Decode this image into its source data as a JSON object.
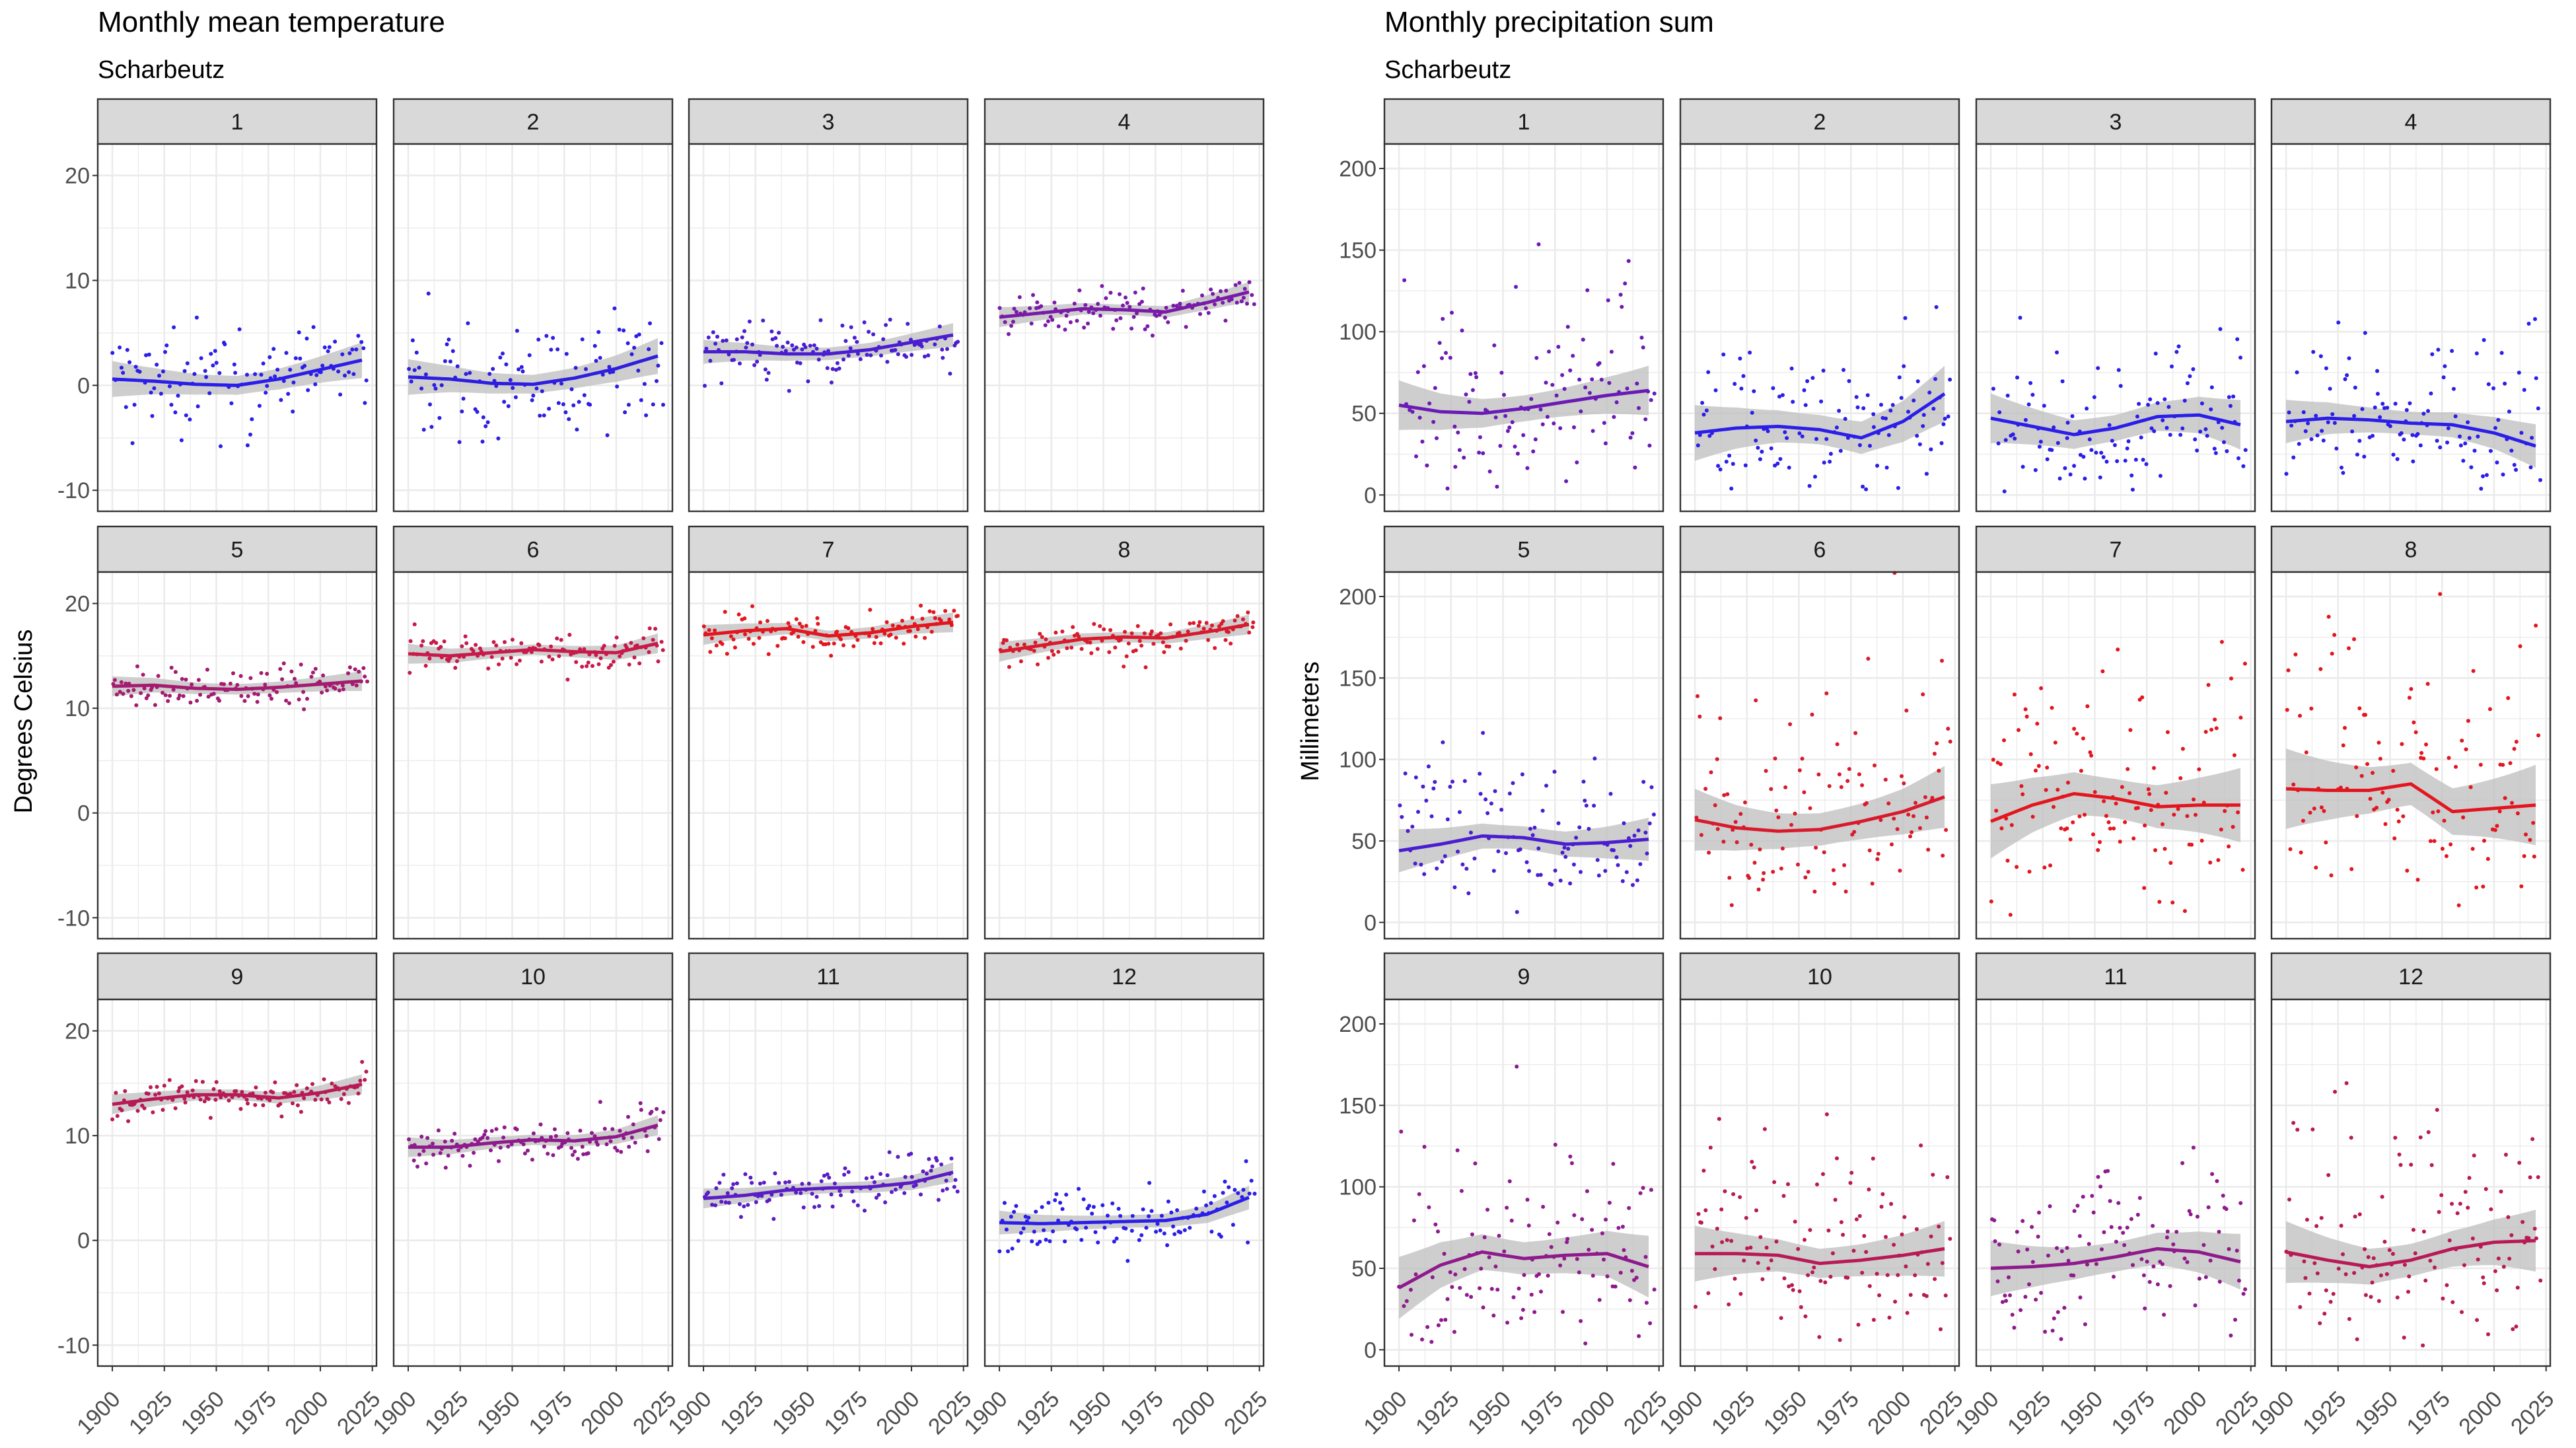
{
  "chart_data": [
    {
      "type": "scatter",
      "title": "Monthly mean temperature",
      "subtitle": "Scharbeutz",
      "ylabel": "Degrees Celsius",
      "xlabel": "",
      "xlim": [
        1893,
        2027
      ],
      "ylim": [
        -12,
        23
      ],
      "xticks": [
        1900,
        1925,
        1950,
        1975,
        2000,
        2025
      ],
      "yticks": [
        -10,
        0,
        10,
        20
      ],
      "facet_labels": [
        "1",
        "2",
        "3",
        "4",
        "5",
        "6",
        "7",
        "8",
        "9",
        "10",
        "11",
        "12"
      ],
      "smooth_x": [
        1900,
        1920,
        1940,
        1960,
        1980,
        2000,
        2020
      ],
      "series": [
        {
          "facet": "1",
          "color": "#2b1ee8",
          "smooth": [
            0.6,
            0.4,
            0.1,
            0.0,
            0.6,
            1.5,
            2.4
          ],
          "band": 0.9,
          "spread": 2.9
        },
        {
          "facet": "2",
          "color": "#2d1ee0",
          "smooth": [
            0.8,
            0.6,
            0.2,
            0.1,
            0.7,
            1.6,
            2.8
          ],
          "band": 0.9,
          "spread": 3.0
        },
        {
          "facet": "3",
          "color": "#4a1ed0",
          "smooth": [
            3.2,
            3.2,
            3.0,
            3.0,
            3.4,
            4.1,
            4.8
          ],
          "band": 0.6,
          "spread": 1.5
        },
        {
          "facet": "4",
          "color": "#7a1aa8",
          "smooth": [
            6.5,
            6.9,
            7.3,
            7.2,
            7.0,
            7.9,
            8.9
          ],
          "band": 0.5,
          "spread": 1.1
        },
        {
          "facet": "5",
          "color": "#a41b70",
          "smooth": [
            12.1,
            12.2,
            11.9,
            11.8,
            12.0,
            12.3,
            12.6
          ],
          "band": 0.5,
          "spread": 1.0
        },
        {
          "facet": "6",
          "color": "#c81a4a",
          "smooth": [
            15.2,
            15.0,
            15.3,
            15.6,
            15.4,
            15.3,
            16.2
          ],
          "band": 0.5,
          "spread": 1.0
        },
        {
          "facet": "7",
          "color": "#e3161f",
          "smooth": [
            17.0,
            17.4,
            17.6,
            16.9,
            17.2,
            17.8,
            18.2
          ],
          "band": 0.5,
          "spread": 1.1
        },
        {
          "facet": "8",
          "color": "#d81b2c",
          "smooth": [
            15.4,
            16.0,
            16.6,
            16.8,
            16.7,
            17.3,
            18.0
          ],
          "band": 0.5,
          "spread": 1.0
        },
        {
          "facet": "9",
          "color": "#b81a55",
          "smooth": [
            13.0,
            13.5,
            13.9,
            13.9,
            13.6,
            14.1,
            14.9
          ],
          "band": 0.5,
          "spread": 0.9
        },
        {
          "facet": "10",
          "color": "#8e1a8c",
          "smooth": [
            8.9,
            8.9,
            9.3,
            9.6,
            9.5,
            9.9,
            11.0
          ],
          "band": 0.5,
          "spread": 1.1
        },
        {
          "facet": "11",
          "color": "#5a1cc4",
          "smooth": [
            4.0,
            4.3,
            4.8,
            5.0,
            5.1,
            5.5,
            6.5
          ],
          "band": 0.5,
          "spread": 1.2
        },
        {
          "facet": "12",
          "color": "#2b1ee8",
          "smooth": [
            1.7,
            1.6,
            1.7,
            1.8,
            1.9,
            2.5,
            4.1
          ],
          "band": 0.6,
          "spread": 1.9
        }
      ]
    },
    {
      "type": "scatter",
      "title": "Monthly precipitation sum",
      "subtitle": "Scharbeutz",
      "ylabel": "Millimeters",
      "xlabel": "",
      "xlim": [
        1893,
        2027
      ],
      "ylim": [
        -10,
        215
      ],
      "xticks": [
        1900,
        1925,
        1950,
        1975,
        2000,
        2025
      ],
      "yticks": [
        0,
        50,
        100,
        150,
        200
      ],
      "facet_labels": [
        "1",
        "2",
        "3",
        "4",
        "5",
        "6",
        "7",
        "8",
        "9",
        "10",
        "11",
        "12"
      ],
      "smooth_x": [
        1900,
        1920,
        1940,
        1960,
        1980,
        2000,
        2020
      ],
      "series": [
        {
          "facet": "1",
          "color": "#6a1ab5",
          "smooth": [
            55,
            51,
            50,
            53,
            57,
            61,
            64
          ],
          "band": 8,
          "spread": 25
        },
        {
          "facet": "2",
          "color": "#2b1ee8",
          "smooth": [
            38,
            41,
            42,
            40,
            35,
            45,
            62
          ],
          "band": 9,
          "spread": 22
        },
        {
          "facet": "3",
          "color": "#2b1ee8",
          "smooth": [
            47,
            42,
            37,
            41,
            48,
            49,
            43
          ],
          "band": 8,
          "spread": 22
        },
        {
          "facet": "4",
          "color": "#2b1ee8",
          "smooth": [
            45,
            47,
            46,
            44,
            43,
            38,
            30
          ],
          "band": 7,
          "spread": 20
        },
        {
          "facet": "5",
          "color": "#4a1ed0",
          "smooth": [
            44,
            48,
            53,
            52,
            48,
            49,
            51
          ],
          "band": 7,
          "spread": 20
        },
        {
          "facet": "6",
          "color": "#d81b2c",
          "smooth": [
            63,
            58,
            56,
            57,
            62,
            68,
            77
          ],
          "band": 10,
          "spread": 28
        },
        {
          "facet": "7",
          "color": "#e3161f",
          "smooth": [
            62,
            72,
            79,
            76,
            71,
            72,
            72
          ],
          "band": 12,
          "spread": 35
        },
        {
          "facet": "8",
          "color": "#e3161f",
          "smooth": [
            82,
            81,
            81,
            85,
            68,
            70,
            72
          ],
          "band": 13,
          "spread": 38
        },
        {
          "facet": "9",
          "color": "#8e1a8c",
          "smooth": [
            38,
            52,
            60,
            56,
            58,
            59,
            51
          ],
          "band": 10,
          "spread": 28
        },
        {
          "facet": "10",
          "color": "#b81a55",
          "smooth": [
            59,
            59,
            58,
            53,
            55,
            58,
            62
          ],
          "band": 9,
          "spread": 26
        },
        {
          "facet": "11",
          "color": "#8e1a8c",
          "smooth": [
            50,
            51,
            53,
            57,
            62,
            60,
            54
          ],
          "band": 9,
          "spread": 26
        },
        {
          "facet": "12",
          "color": "#b81a55",
          "smooth": [
            60,
            55,
            51,
            55,
            62,
            66,
            67
          ],
          "band": 10,
          "spread": 30
        }
      ]
    }
  ],
  "colors": {
    "panel_background": "#ffffff",
    "panel_border": "#333333",
    "strip_background": "#d9d9d9",
    "grid": "#ebebeb",
    "ribbon": "#bdbdbd",
    "text": "#000000",
    "tick_text": "#4d4d4d"
  }
}
